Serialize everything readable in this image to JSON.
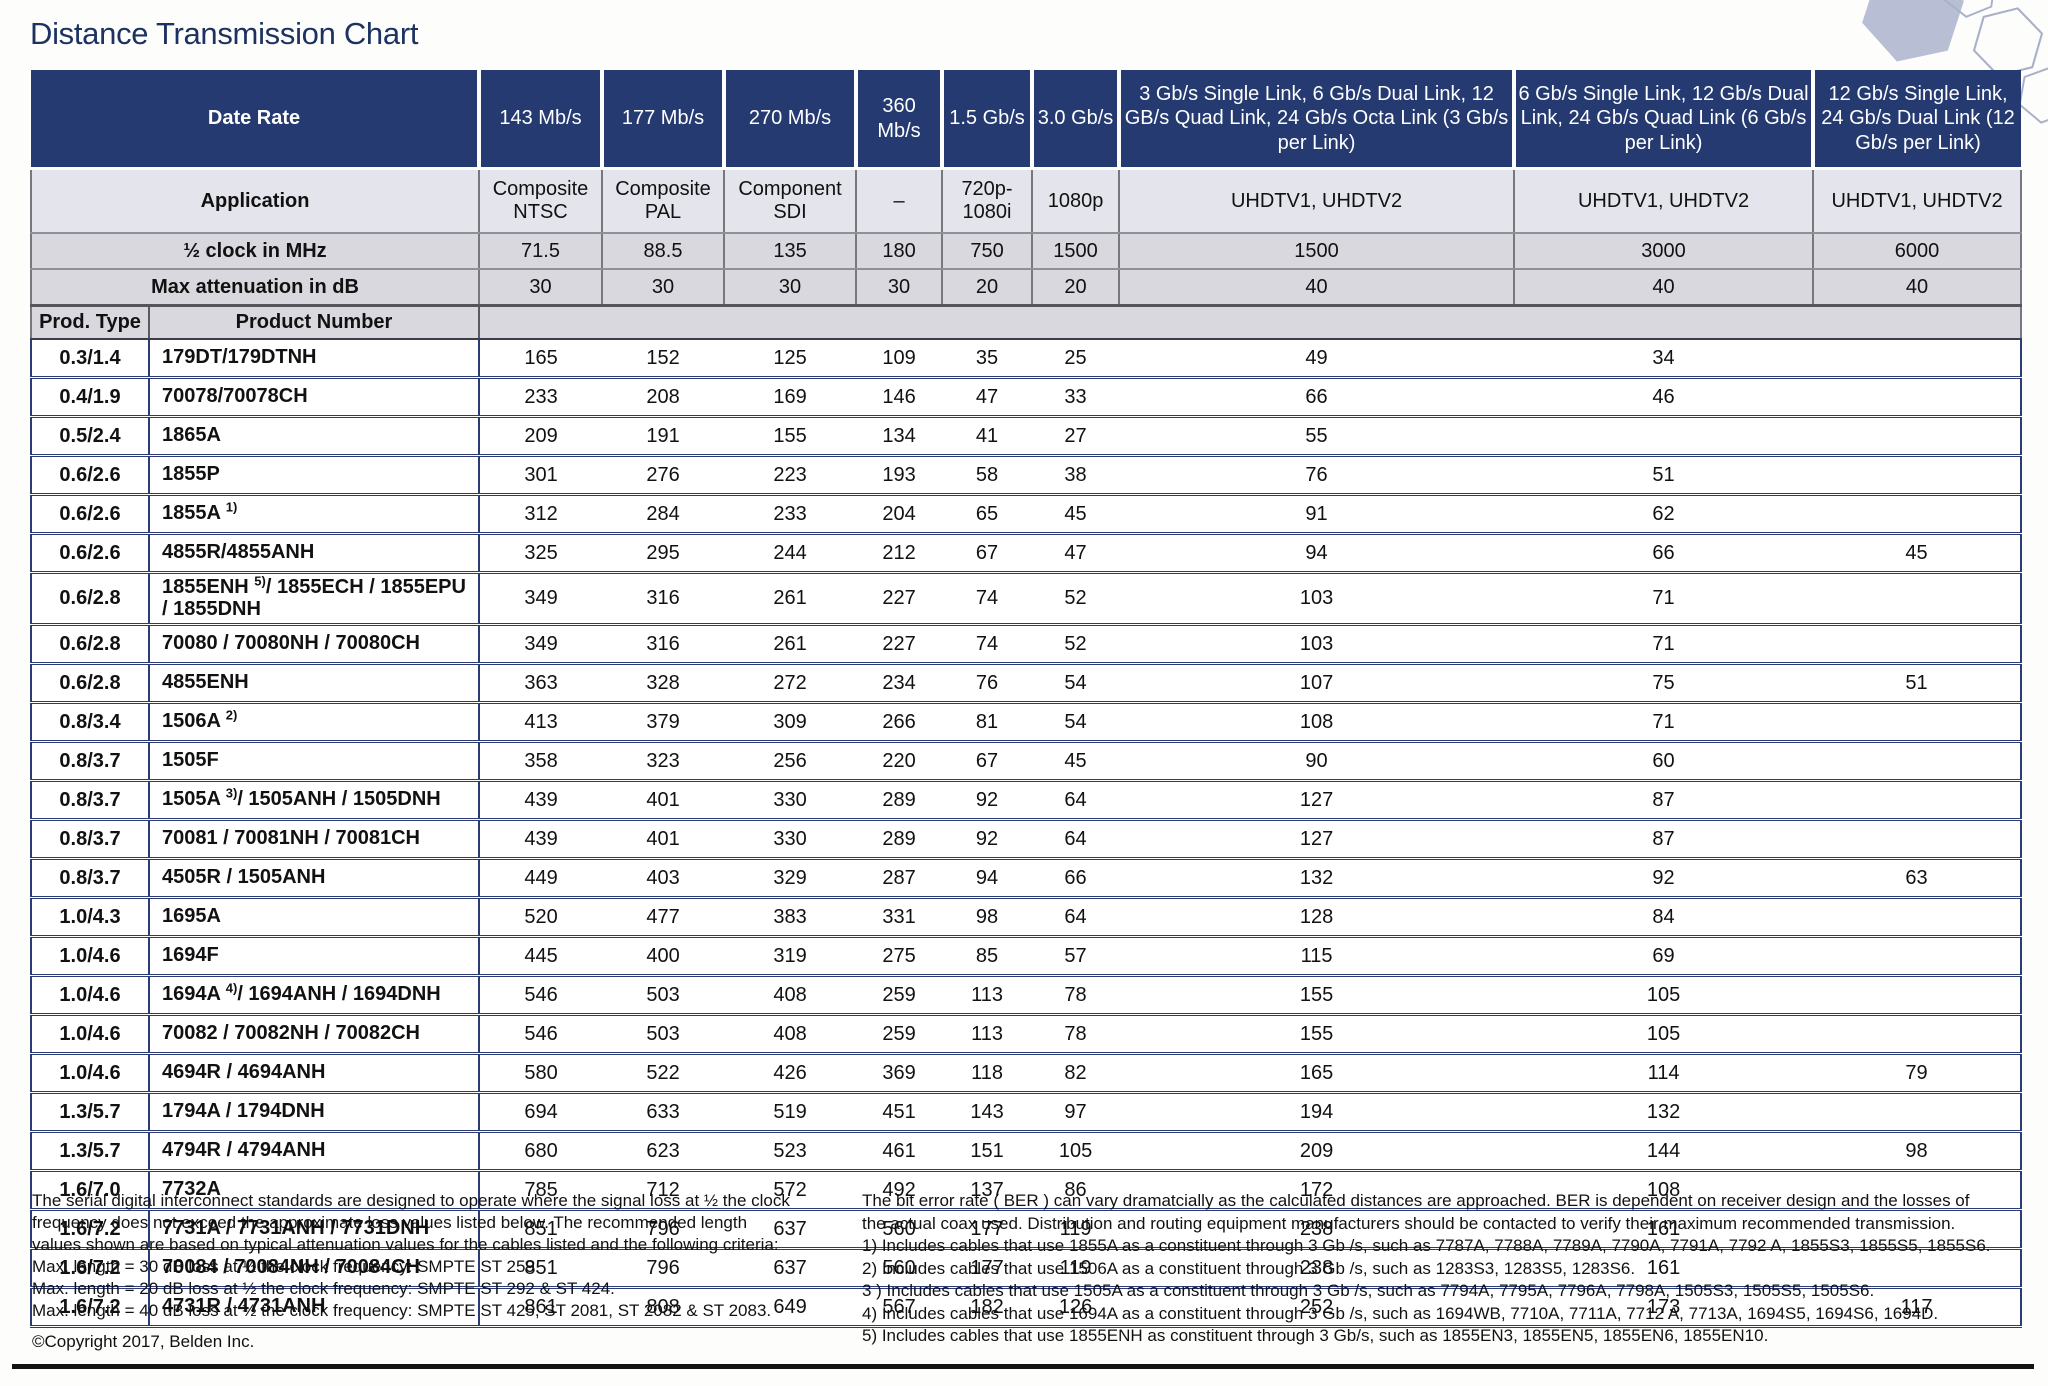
{
  "title": "Distance Transmission Chart",
  "colors": {
    "header_navy": "#243a70",
    "header_text": "#ffffff",
    "body_line_navy": "#2b3b76",
    "gray_row": "#d8d8de",
    "application_row": "#e4e4ec",
    "title_navy": "#1d3261",
    "hexagon_fill": "#b8bfd5",
    "hexagon_outline": "#a9b1c7"
  },
  "table": {
    "corner": {
      "date_rate": "Date Rate",
      "application": "Application",
      "clock": "½ clock in MHz",
      "attenuation": "Max attenuation in dB",
      "prod_type": "Prod. Type",
      "product_number": "Product Number"
    },
    "columns": [
      {
        "rate": "143 Mb/s",
        "app": "Composite NTSC",
        "clock": "71.5",
        "att": "30"
      },
      {
        "rate": "177 Mb/s",
        "app": "Composite PAL",
        "clock": "88.5",
        "att": "30"
      },
      {
        "rate": "270 Mb/s",
        "app": "Component SDI",
        "clock": "135",
        "att": "30"
      },
      {
        "rate": "360 Mb/s",
        "app": "–",
        "clock": "180",
        "att": "30"
      },
      {
        "rate": "1.5 Gb/s",
        "app": "720p- 1080i",
        "clock": "750",
        "att": "20"
      },
      {
        "rate": "3.0 Gb/s",
        "app": "1080p",
        "clock": "1500",
        "att": "20"
      },
      {
        "rate": "3 Gb/s Single Link, 6 Gb/s Dual Link, 12 GB/s Quad Link, 24 Gb/s Octa Link (3 Gb/s per Link)",
        "app": "UHDTV1, UHDTV2",
        "clock": "1500",
        "att": "40"
      },
      {
        "rate": "6 Gb/s Single Link, 12 Gb/s Dual Link, 24 Gb/s Quad Link (6 Gb/s per Link)",
        "app": "UHDTV1, UHDTV2",
        "clock": "3000",
        "att": "40"
      },
      {
        "rate": "12 Gb/s Single Link, 24 Gb/s Dual Link (12 Gb/s per Link)",
        "app": "UHDTV1, UHDTV2",
        "clock": "6000",
        "att": "40"
      }
    ],
    "rows": [
      {
        "type": "0.3/1.4",
        "product": [
          "179DT/179DTNH"
        ],
        "values": [
          "165",
          "152",
          "125",
          "109",
          "35",
          "25",
          "49",
          "34",
          ""
        ]
      },
      {
        "type": "0.4/1.9",
        "product": [
          "70078/70078CH"
        ],
        "values": [
          "233",
          "208",
          "169",
          "146",
          "47",
          "33",
          "66",
          "46",
          ""
        ]
      },
      {
        "type": "0.5/2.4",
        "product": [
          "1865A"
        ],
        "values": [
          "209",
          "191",
          "155",
          "134",
          "41",
          "27",
          "55",
          "",
          ""
        ]
      },
      {
        "type": "0.6/2.6",
        "product": [
          "1855P"
        ],
        "values": [
          "301",
          "276",
          "223",
          "193",
          "58",
          "38",
          "76",
          "51",
          ""
        ]
      },
      {
        "type": "0.6/2.6",
        "product": [
          "1855A ",
          "1)"
        ],
        "values": [
          "312",
          "284",
          "233",
          "204",
          "65",
          "45",
          "91",
          "62",
          ""
        ]
      },
      {
        "type": "0.6/2.6",
        "product": [
          "4855R/4855ANH"
        ],
        "values": [
          "325",
          "295",
          "244",
          "212",
          "67",
          "47",
          "94",
          "66",
          "45"
        ]
      },
      {
        "type": "0.6/2.8",
        "product": [
          "1855ENH ",
          "5)",
          "/ 1855ECH / 1855EPU / 1855DNH"
        ],
        "values": [
          "349",
          "316",
          "261",
          "227",
          "74",
          "52",
          "103",
          "71",
          ""
        ]
      },
      {
        "type": "0.6/2.8",
        "product": [
          "70080 / 70080NH / 70080CH"
        ],
        "values": [
          "349",
          "316",
          "261",
          "227",
          "74",
          "52",
          "103",
          "71",
          ""
        ]
      },
      {
        "type": "0.6/2.8",
        "product": [
          "4855ENH"
        ],
        "values": [
          "363",
          "328",
          "272",
          "234",
          "76",
          "54",
          "107",
          "75",
          "51"
        ]
      },
      {
        "type": "0.8/3.4",
        "product": [
          "1506A ",
          "2)"
        ],
        "values": [
          "413",
          "379",
          "309",
          "266",
          "81",
          "54",
          "108",
          "71",
          ""
        ]
      },
      {
        "type": "0.8/3.7",
        "product": [
          "1505F"
        ],
        "values": [
          "358",
          "323",
          "256",
          "220",
          "67",
          "45",
          "90",
          "60",
          ""
        ]
      },
      {
        "type": "0.8/3.7",
        "product": [
          "1505A ",
          "3)",
          "/ 1505ANH / 1505DNH"
        ],
        "values": [
          "439",
          "401",
          "330",
          "289",
          "92",
          "64",
          "127",
          "87",
          ""
        ]
      },
      {
        "type": "0.8/3.7",
        "product": [
          "70081 / 70081NH / 70081CH"
        ],
        "values": [
          "439",
          "401",
          "330",
          "289",
          "92",
          "64",
          "127",
          "87",
          ""
        ]
      },
      {
        "type": "0.8/3.7",
        "product": [
          "4505R / 1505ANH"
        ],
        "values": [
          "449",
          "403",
          "329",
          "287",
          "94",
          "66",
          "132",
          "92",
          "63"
        ]
      },
      {
        "type": "1.0/4.3",
        "product": [
          "1695A"
        ],
        "values": [
          "520",
          "477",
          "383",
          "331",
          "98",
          "64",
          "128",
          "84",
          ""
        ]
      },
      {
        "type": "1.0/4.6",
        "product": [
          "1694F"
        ],
        "values": [
          "445",
          "400",
          "319",
          "275",
          "85",
          "57",
          "115",
          "69",
          ""
        ]
      },
      {
        "type": "1.0/4.6",
        "product": [
          "1694A ",
          "4)",
          "/ 1694ANH / 1694DNH"
        ],
        "values": [
          "546",
          "503",
          "408",
          "259",
          "113",
          "78",
          "155",
          "105",
          ""
        ]
      },
      {
        "type": "1.0/4.6",
        "product": [
          "70082 / 70082NH / 70082CH"
        ],
        "values": [
          "546",
          "503",
          "408",
          "259",
          "113",
          "78",
          "155",
          "105",
          ""
        ]
      },
      {
        "type": "1.0/4.6",
        "product": [
          "4694R / 4694ANH"
        ],
        "values": [
          "580",
          "522",
          "426",
          "369",
          "118",
          "82",
          "165",
          "114",
          "79"
        ]
      },
      {
        "type": "1.3/5.7",
        "product": [
          "1794A / 1794DNH"
        ],
        "values": [
          "694",
          "633",
          "519",
          "451",
          "143",
          "97",
          "194",
          "132",
          ""
        ]
      },
      {
        "type": "1.3/5.7",
        "product": [
          "4794R / 4794ANH"
        ],
        "values": [
          "680",
          "623",
          "523",
          "461",
          "151",
          "105",
          "209",
          "144",
          "98"
        ]
      },
      {
        "type": "1.6/7.0",
        "product": [
          "7732A"
        ],
        "values": [
          "785",
          "712",
          "572",
          "492",
          "137",
          "86",
          "172",
          "108",
          ""
        ]
      },
      {
        "type": "1.6/7.2",
        "product": [
          "7731A / 7731ANH / 7731DNH"
        ],
        "values": [
          "851",
          "796",
          "637",
          "560",
          "177",
          "119",
          "238",
          "161",
          ""
        ]
      },
      {
        "type": "1.6/7.2",
        "product": [
          "70084 / 70084NH / 70084CH"
        ],
        "values": [
          "851",
          "796",
          "637",
          "560",
          "177",
          "119",
          "238",
          "161",
          ""
        ]
      },
      {
        "type": "1.6/7.2",
        "product": [
          "4731R / 4731ANH"
        ],
        "values": [
          "861",
          "808",
          "649",
          "567",
          "182",
          "126",
          "252",
          "173",
          "117"
        ]
      }
    ]
  },
  "footnotes_left": {
    "lines": [
      "The serial digital interconnect standards are designed to operate where the signal loss at ½ the clock",
      "frequency does not exceed the approximate loss values listed below. The recommended length",
      "values shown are based on typical attenuation values for the cables listed and the following criteria:",
      "Max. length = 30 dB loss at ½ the clock frequency: SMPTE ST 259.",
      "Max. length = 20 dB loss at ½ the clock frequency: SMPTE ST 292 & ST 424.",
      "Max. length = 40 dB loss at ½ the clock frequency: SMPTE ST 425, ST 2081, ST 2082 & ST 2083."
    ],
    "copyright": "©Copyright 2017, Belden Inc."
  },
  "footnotes_right": {
    "lines": [
      "The bit error rate ( BER ) can vary dramatcially as the calculated distances are approached. BER is dependent on receiver design and the losses of",
      "the actual coax used. Distribution and routing equipment manufacturers should be contacted to verify their maximum recommended transmission.",
      "1) Includes cables that use 1855A as a constituent through 3 Gb /s, such as 7787A, 7788A, 7789A, 7790A, 7791A, 7792 A, 1855S3, 1855S5, 1855S6.",
      "2) Includes cables that use 1506A as a constituent through 3 Gb /s, such as 1283S3, 1283S5, 1283S6.",
      "3 ) Includes cables that use 1505A as a constituent through 3 Gb /s, such as 7794A, 7795A, 7796A, 7798A, 1505S3, 1505S5, 1505S6.",
      "4) Includes cables that use 1694A as a constituent through 3 Gb /s, such as 1694WB, 7710A, 7711A, 7712 A, 7713A, 1694S5, 1694S6, 1694D.",
      "5) Includes cables that use 1855ENH as constituent through 3 Gb/s, such as 1855EN3, 1855EN5, 1855EN6, 1855EN10."
    ]
  }
}
